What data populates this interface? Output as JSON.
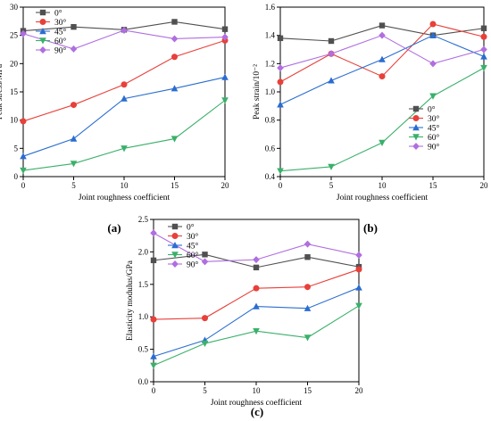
{
  "chart_data": [
    {
      "type": "line",
      "panel_label": "(a)",
      "xlabel": "Joint roughness coefficient",
      "ylabel": "Peak stress/MPa",
      "x": [
        0,
        5,
        10,
        15,
        20
      ],
      "xticks": [
        "0",
        "5",
        "10",
        "15",
        "20"
      ],
      "xlim": [
        0,
        20
      ],
      "yticks": [
        "0",
        "5",
        "10",
        "15",
        "20",
        "25",
        "30"
      ],
      "ylim": [
        0,
        30
      ],
      "legend_position": "upper-left",
      "series": [
        {
          "name": "0°",
          "color": "#505050",
          "marker": "square",
          "values": [
            25.8,
            26.5,
            26.0,
            27.4,
            26.1
          ]
        },
        {
          "name": "30°",
          "color": "#e8403a",
          "marker": "circle",
          "values": [
            9.8,
            12.7,
            16.3,
            21.2,
            24.1
          ]
        },
        {
          "name": "45°",
          "color": "#2a6dd0",
          "marker": "triangle-up",
          "values": [
            3.6,
            6.7,
            13.8,
            15.6,
            17.6
          ]
        },
        {
          "name": "60°",
          "color": "#3ab06a",
          "marker": "triangle-down",
          "values": [
            1.1,
            2.3,
            5.0,
            6.7,
            13.5
          ]
        },
        {
          "name": "90°",
          "color": "#b06ee0",
          "marker": "diamond",
          "values": [
            25.3,
            22.6,
            25.9,
            24.4,
            24.7
          ]
        }
      ]
    },
    {
      "type": "line",
      "panel_label": "(b)",
      "xlabel": "Joint roughness coefficient",
      "ylabel": "Peak strain/10⁻²",
      "x": [
        0,
        5,
        10,
        15,
        20
      ],
      "xticks": [
        "0",
        "5",
        "10",
        "15",
        "20"
      ],
      "xlim": [
        0,
        20
      ],
      "yticks": [
        "0.4",
        "0.6",
        "0.8",
        "1.0",
        "1.2",
        "1.4",
        "1.6"
      ],
      "ylim": [
        0.4,
        1.6
      ],
      "legend_position": "lower-right",
      "series": [
        {
          "name": "0°",
          "color": "#505050",
          "marker": "square",
          "values": [
            1.38,
            1.36,
            1.47,
            1.4,
            1.45
          ]
        },
        {
          "name": "30°",
          "color": "#e8403a",
          "marker": "circle",
          "values": [
            1.07,
            1.27,
            1.11,
            1.48,
            1.39
          ]
        },
        {
          "name": "45°",
          "color": "#2a6dd0",
          "marker": "triangle-up",
          "values": [
            0.91,
            1.08,
            1.23,
            1.4,
            1.25
          ]
        },
        {
          "name": "60°",
          "color": "#3ab06a",
          "marker": "triangle-down",
          "values": [
            0.44,
            0.47,
            0.64,
            0.97,
            1.17
          ]
        },
        {
          "name": "90°",
          "color": "#b06ee0",
          "marker": "diamond",
          "values": [
            1.17,
            1.27,
            1.4,
            1.2,
            1.3
          ]
        }
      ]
    },
    {
      "type": "line",
      "panel_label": "(c)",
      "xlabel": "Joint roughness coefficient",
      "ylabel": "Elasticity modulus/GPa",
      "x": [
        0,
        5,
        10,
        15,
        20
      ],
      "xticks": [
        "0",
        "5",
        "10",
        "15",
        "20"
      ],
      "xlim": [
        0,
        20
      ],
      "yticks": [
        "0.0",
        "0.5",
        "1.0",
        "1.5",
        "2.0",
        "2.5"
      ],
      "ylim": [
        0,
        2.5
      ],
      "legend_position": "upper-left",
      "series": [
        {
          "name": "0°",
          "color": "#505050",
          "marker": "square",
          "values": [
            1.87,
            1.96,
            1.76,
            1.92,
            1.77
          ]
        },
        {
          "name": "30°",
          "color": "#e8403a",
          "marker": "circle",
          "values": [
            0.96,
            0.98,
            1.44,
            1.46,
            1.73
          ]
        },
        {
          "name": "45°",
          "color": "#2a6dd0",
          "marker": "triangle-up",
          "values": [
            0.39,
            0.64,
            1.16,
            1.13,
            1.45
          ]
        },
        {
          "name": "60°",
          "color": "#3ab06a",
          "marker": "triangle-down",
          "values": [
            0.25,
            0.59,
            0.78,
            0.68,
            1.17
          ]
        },
        {
          "name": "90°",
          "color": "#b06ee0",
          "marker": "diamond",
          "values": [
            2.29,
            1.85,
            1.88,
            2.12,
            1.95
          ]
        }
      ]
    }
  ]
}
